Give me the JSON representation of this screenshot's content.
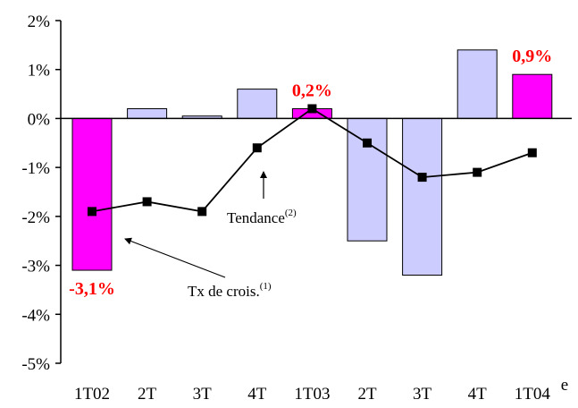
{
  "chart_data": {
    "type": "bar",
    "categories": [
      "1T02",
      "2T",
      "3T",
      "4T",
      "1T03",
      "2T",
      "3T",
      "4T",
      "1T04"
    ],
    "category_suffix": "e",
    "series": [
      {
        "name": "Tx de crois.",
        "type": "bar",
        "values": [
          -3.1,
          0.2,
          0.05,
          0.6,
          0.2,
          -2.5,
          -3.2,
          1.4,
          0.9
        ],
        "highlight": [
          true,
          false,
          false,
          false,
          true,
          false,
          false,
          false,
          true
        ]
      },
      {
        "name": "Tendance",
        "type": "line",
        "values": [
          -1.9,
          -1.7,
          -1.9,
          -0.6,
          0.2,
          -0.5,
          -1.2,
          -1.1,
          -0.7
        ]
      }
    ],
    "yticks": [
      "-5%",
      "-4%",
      "-3%",
      "-2%",
      "-1%",
      "0%",
      "1%",
      "2%"
    ],
    "ylim": [
      -5,
      2
    ],
    "grid": false,
    "data_labels": [
      {
        "category_index": 0,
        "text": "-3,1%"
      },
      {
        "category_index": 4,
        "text": "0,2%"
      },
      {
        "category_index": 8,
        "text": "0,9%"
      }
    ],
    "annotations": [
      {
        "text": "Tx de crois.",
        "superscript": "(1)"
      },
      {
        "text": "Tendance",
        "superscript": "(2)"
      }
    ],
    "colors": {
      "bar_normal": "#ccccff",
      "bar_highlight": "#ff00ff",
      "bar_stroke": "#000000",
      "line": "#000000",
      "data_label": "#ff0000"
    }
  }
}
